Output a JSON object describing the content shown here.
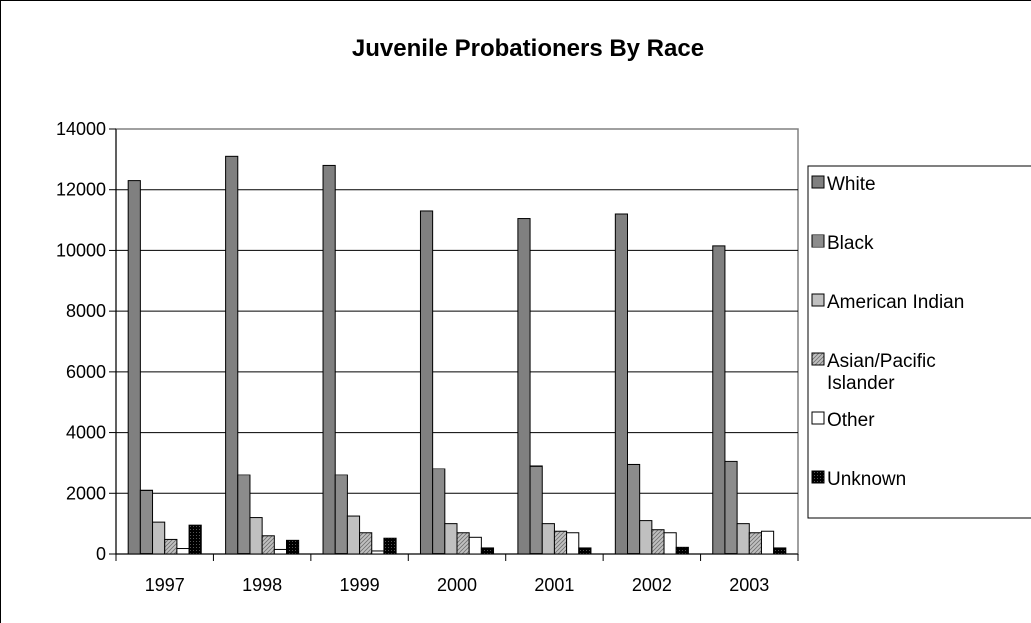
{
  "chart_data": {
    "type": "bar",
    "title": "Juvenile Probationers By Race",
    "xlabel": "",
    "ylabel": "",
    "categories": [
      "1997",
      "1998",
      "1999",
      "2000",
      "2001",
      "2002",
      "2003"
    ],
    "ylim": [
      0,
      14000
    ],
    "yticks": [
      0,
      2000,
      4000,
      6000,
      8000,
      10000,
      12000,
      14000
    ],
    "grid": true,
    "legend_position": "right",
    "series": [
      {
        "name": "White",
        "values": [
          12300,
          13100,
          12800,
          11300,
          11050,
          11200,
          10150
        ],
        "color": "#808080",
        "pattern": "solid"
      },
      {
        "name": "Black",
        "values": [
          2100,
          2600,
          2600,
          2800,
          2900,
          2950,
          3050
        ],
        "color": "#ffffff",
        "pattern": "horizontal-lines"
      },
      {
        "name": "American Indian",
        "values": [
          1050,
          1200,
          1250,
          1000,
          1000,
          1100,
          1000
        ],
        "color": "#c0c0c0",
        "pattern": "solid"
      },
      {
        "name": "Asian/Pacific Islander",
        "values": [
          480,
          600,
          700,
          700,
          750,
          800,
          700
        ],
        "color": "#c0c0c0",
        "pattern": "diagonal-stripes"
      },
      {
        "name": "Other",
        "values": [
          180,
          150,
          100,
          550,
          700,
          700,
          750
        ],
        "color": "#ffffff",
        "pattern": "solid"
      },
      {
        "name": "Unknown",
        "values": [
          950,
          450,
          520,
          200,
          200,
          220,
          200
        ],
        "color": "#000000",
        "pattern": "dark-dots"
      }
    ]
  }
}
